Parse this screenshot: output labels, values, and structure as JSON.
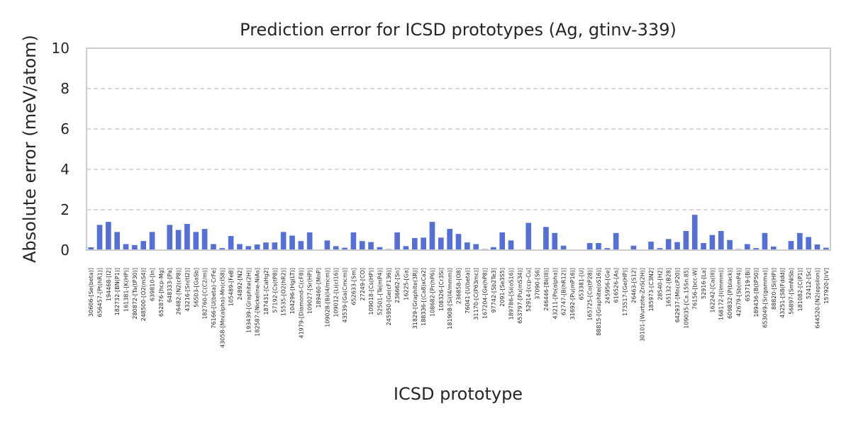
{
  "chart_data": {
    "type": "bar",
    "title": "Prediction error for ICSD prototypes (Ag, gtinv-339)",
    "xlabel": "ICSD prototype",
    "ylabel": "Absolute error (meV/atom)",
    "ylim": [
      0,
      10
    ],
    "yticks": [
      0,
      2,
      4,
      6,
      8,
      10
    ],
    "grid": "y-dashed",
    "bar_color": "#5470d6",
    "categories": [
      "30606-[Se(beta)]",
      "656457-[Pt(hR1)]",
      "194468-[I2]",
      "182732-[BN(P1)]",
      "161381-[K(HP)]",
      "280872-[Ta(tP30)]",
      "248500-[O2(mS4)]",
      "639810-[In]",
      "652876-[hcp-Mg]",
      "648333-[Pa]",
      "26482-[N2(cP8)]",
      "43216-[Sn(tI2)]",
      "56503-[GaSb]",
      "182760-[C(C2/m)]",
      "76166-[U(beta)-CrFe]",
      "43058-[Mn(alpha)-Mn(cI58)]",
      "105489-[FeB]",
      "24892-[N2]",
      "193439-[Graphite(2H)]",
      "182587-[Nickeline-NiAs]",
      "187431-[CaHg2]",
      "57192-[Cs(tP8)]",
      "15535-[O2(hR2)]",
      "104296-[Hg(LT)]",
      "41979-[Diamond-C(cF8)]",
      "109027-[Sr(HP)]",
      "189460-[MnP]",
      "109028-[Bi(I4/mcm)]",
      "109012-[Li(cI16)]",
      "43539-[Ga(Cmcm)]",
      "652633-[Sm]",
      "27249-[CO]",
      "109018-[Cs(HP)]",
      "52501-[Te(mP4)]",
      "245950-[Ge(cF136)]",
      "236662-[Sn]",
      "16225-[Ga]",
      "31829-[Graphite(3R)]",
      "188336-[(Ca8)xCa2]",
      "108682-[Pr(hP6)]",
      "108326-[Cr3Si]",
      "181908-[Si(I4/mmm)]",
      "236858-[O8]",
      "76041-[U(beta)]",
      "31170-[C(P63mc)]",
      "167204-[Ge(hP8)]",
      "97742-[Sb2Te3]",
      "2091-[Se3S5]",
      "189786-[Si(oS16)]",
      "653797-[Pu(mS34)]",
      "52914-[ccp-Cu]",
      "37090-[S6]",
      "246446-[Bi(III)]",
      "43211-[Po(alpha)]",
      "62747-[B(hR12)]",
      "31692-[Pu(mP16)]",
      "653381-[U]",
      "165725-[Co(tP28)]",
      "88815-[Graphite(oS16)]",
      "245956-[Ge]",
      "616526-[As]",
      "173517-[Ge(HP)]",
      "26463-[S12]",
      "30101-[Wurtzite-ZnS(2H)]",
      "185973-[C3N2]",
      "28540-[H2]",
      "165132-[B28]",
      "642937-[Mn(cP20)]",
      "109035-[Ca.15Sn.85]",
      "76156-[bcc-W]",
      "52916-[La]",
      "162242-[Ca(III)]",
      "168172-[I(Immm)]",
      "609832-[P(black)]",
      "42679-[Sb(mP4)]",
      "653719-[Bi]",
      "189436-[B(tP50)]",
      "653049-[Sr(gamma)]",
      "88820-[Si(HP)]",
      "43251-[S8(Fddd)]",
      "56897-[SmNiSb]",
      "181082-[C(P1)]",
      "52412-[Sc]",
      "644520-[N2(epsilon)]",
      "157920-[IrV]"
    ],
    "values": [
      0.14,
      1.25,
      1.4,
      0.9,
      0.3,
      0.25,
      0.45,
      0.9,
      0.0,
      1.25,
      1.0,
      1.3,
      0.9,
      1.05,
      0.3,
      0.1,
      0.7,
      0.3,
      0.2,
      0.28,
      0.38,
      0.38,
      0.9,
      0.72,
      0.45,
      0.88,
      0.0,
      0.48,
      0.2,
      0.12,
      0.88,
      0.45,
      0.4,
      0.15,
      0.05,
      0.88,
      0.2,
      0.6,
      0.62,
      1.4,
      0.62,
      1.05,
      0.8,
      0.38,
      0.3,
      0.05,
      0.15,
      0.88,
      0.48,
      0.0,
      1.35,
      0.0,
      1.15,
      0.85,
      0.22,
      0.0,
      0.0,
      0.35,
      0.35,
      0.1,
      0.85,
      0.0,
      0.22,
      0.0,
      0.42,
      0.1,
      0.55,
      0.4,
      0.95,
      1.75,
      0.35,
      0.75,
      0.95,
      0.5,
      0.05,
      0.3,
      0.1,
      0.85,
      0.18,
      0.0,
      0.45,
      0.85,
      0.65,
      0.28,
      0.12
    ]
  }
}
